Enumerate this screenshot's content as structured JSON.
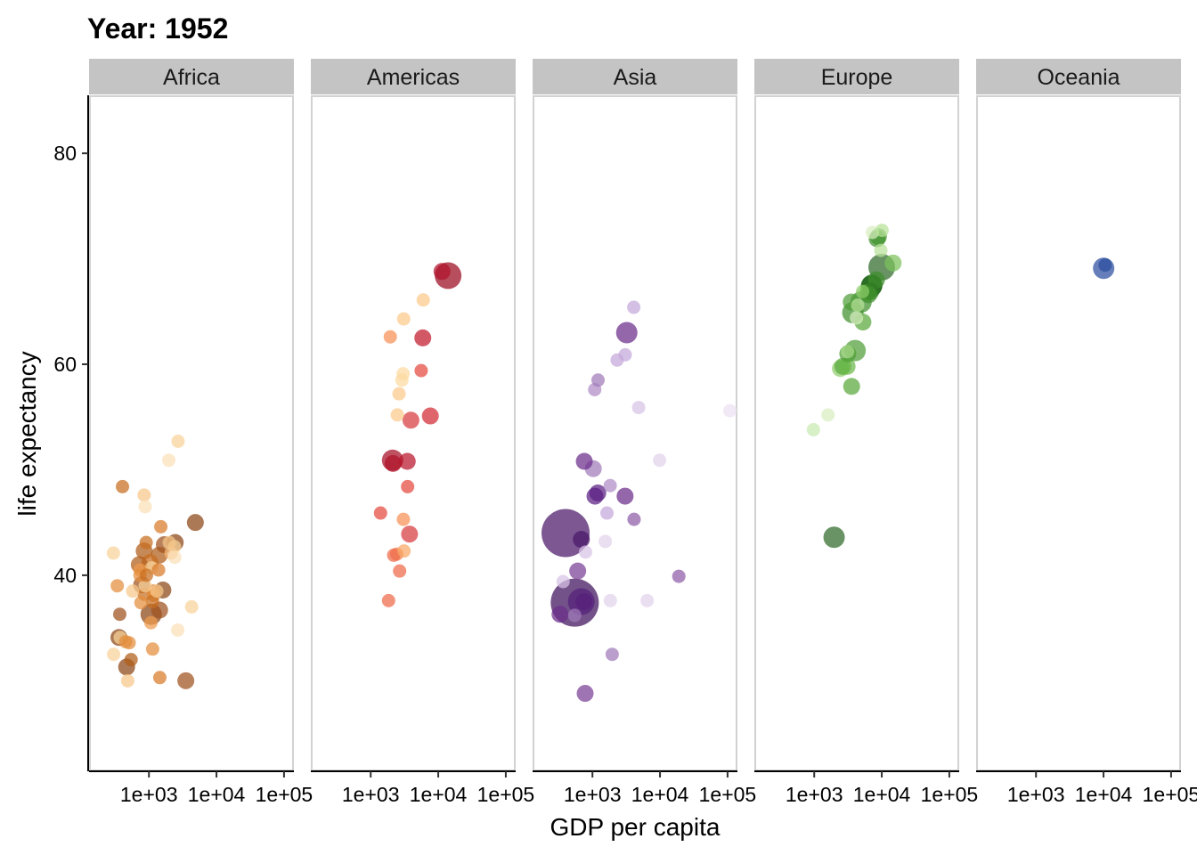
{
  "title": "Year: 1952",
  "chart_data": {
    "type": "scatter",
    "title": "Year: 1952",
    "xlabel": "GDP per capita",
    "ylabel": "life expectancy",
    "x_scale": "log10",
    "xlim": [
      130,
      140000
    ],
    "ylim": [
      21.5,
      85.5
    ],
    "x_ticks": [
      1000,
      10000,
      100000
    ],
    "x_tick_labels": [
      "1e+03",
      "1e+04",
      "1e+05"
    ],
    "y_ticks": [
      40,
      60,
      80
    ],
    "y_tick_labels": [
      "40",
      "60",
      "80"
    ],
    "facets": [
      {
        "name": "Africa",
        "points": [
          {
            "x": 2450,
            "y": 43.1,
            "size": 2,
            "color": "#8b4513"
          },
          {
            "x": 3520,
            "y": 30.0,
            "size": 2,
            "color": "#a0521d"
          },
          {
            "x": 850,
            "y": 38.2,
            "size": 1,
            "color": "#c86d1e"
          },
          {
            "x": 850,
            "y": 47.6,
            "size": 1,
            "color": "#f6c78a"
          },
          {
            "x": 545,
            "y": 32.0,
            "size": 1,
            "color": "#b05c17"
          },
          {
            "x": 340,
            "y": 39.0,
            "size": 1,
            "color": "#e38d3b"
          },
          {
            "x": 1170,
            "y": 38.5,
            "size": 1,
            "color": "#d97a2a"
          },
          {
            "x": 1070,
            "y": 35.5,
            "size": 1,
            "color": "#ee9a4c"
          },
          {
            "x": 1180,
            "y": 38.1,
            "size": 1,
            "color": "#e38d3b"
          },
          {
            "x": 1100,
            "y": 40.7,
            "size": 1,
            "color": "#f8d29a"
          },
          {
            "x": 780,
            "y": 39.1,
            "size": 2,
            "color": "#a0521d"
          },
          {
            "x": 2130,
            "y": 42.1,
            "size": 1,
            "color": "#f4b87a"
          },
          {
            "x": 1390,
            "y": 40.5,
            "size": 1,
            "color": "#d97a2a"
          },
          {
            "x": 2670,
            "y": 34.8,
            "size": 1,
            "color": "#fbe0b8"
          },
          {
            "x": 1420,
            "y": 41.9,
            "size": 2,
            "color": "#b05c17"
          },
          {
            "x": 375,
            "y": 34.1,
            "size": 1,
            "color": "#f8d29a"
          },
          {
            "x": 360,
            "y": 34.1,
            "size": 2,
            "color": "#8b4513"
          },
          {
            "x": 4290,
            "y": 37.0,
            "size": 1,
            "color": "#f8d29a"
          },
          {
            "x": 485,
            "y": 30.0,
            "size": 1,
            "color": "#f6c78a"
          },
          {
            "x": 911,
            "y": 43.1,
            "size": 1,
            "color": "#c86d1e"
          },
          {
            "x": 510,
            "y": 33.6,
            "size": 1,
            "color": "#e38d3b"
          },
          {
            "x": 300,
            "y": 32.5,
            "size": 1,
            "color": "#f8d29a"
          },
          {
            "x": 850,
            "y": 42.3,
            "size": 2,
            "color": "#b05c17"
          },
          {
            "x": 298,
            "y": 42.1,
            "size": 1,
            "color": "#f8d29a"
          },
          {
            "x": 575,
            "y": 38.5,
            "size": 1,
            "color": "#f6c78a"
          },
          {
            "x": 2390,
            "y": 42.7,
            "size": 1,
            "color": "#f8d29a"
          },
          {
            "x": 1440,
            "y": 36.7,
            "size": 2,
            "color": "#a0521d"
          },
          {
            "x": 370,
            "y": 36.3,
            "size": 1,
            "color": "#a0521d"
          },
          {
            "x": 1130,
            "y": 37.5,
            "size": 1,
            "color": "#c86d1e"
          },
          {
            "x": 452,
            "y": 33.7,
            "size": 1,
            "color": "#e38d3b"
          },
          {
            "x": 740,
            "y": 40.5,
            "size": 1,
            "color": "#ee9a4c"
          },
          {
            "x": 1970,
            "y": 50.9,
            "size": 1,
            "color": "#fbe0b8"
          },
          {
            "x": 1690,
            "y": 42.9,
            "size": 2,
            "color": "#a0521d"
          },
          {
            "x": 468,
            "y": 31.3,
            "size": 2,
            "color": "#8b4513"
          },
          {
            "x": 2420,
            "y": 41.7,
            "size": 1,
            "color": "#fbe0b8"
          },
          {
            "x": 762,
            "y": 37.4,
            "size": 1,
            "color": "#e38d3b"
          },
          {
            "x": 1080,
            "y": 36.3,
            "size": 3,
            "color": "#8b4513"
          },
          {
            "x": 880,
            "y": 39.0,
            "size": 1,
            "color": "#f8d29a"
          },
          {
            "x": 1450,
            "y": 30.3,
            "size": 1,
            "color": "#d97a2a"
          },
          {
            "x": 880,
            "y": 46.5,
            "size": 1,
            "color": "#fbe0b8"
          },
          {
            "x": 1135,
            "y": 33.0,
            "size": 1,
            "color": "#e38d3b"
          },
          {
            "x": 4870,
            "y": 45.0,
            "size": 2,
            "color": "#8b4513"
          },
          {
            "x": 1610,
            "y": 38.6,
            "size": 2,
            "color": "#8b4513"
          },
          {
            "x": 1040,
            "y": 41.2,
            "size": 2,
            "color": "#c86d1e"
          },
          {
            "x": 1310,
            "y": 38.5,
            "size": 1,
            "color": "#f6c78a"
          },
          {
            "x": 2700,
            "y": 52.7,
            "size": 1,
            "color": "#f8d29a"
          },
          {
            "x": 738,
            "y": 40.0,
            "size": 1,
            "color": "#e38d3b"
          },
          {
            "x": 2000,
            "y": 43.1,
            "size": 1,
            "color": "#f6c78a"
          },
          {
            "x": 406,
            "y": 48.4,
            "size": 1,
            "color": "#c86d1e"
          },
          {
            "x": 920,
            "y": 40.0,
            "size": 1,
            "color": "#c86d1e"
          },
          {
            "x": 1500,
            "y": 44.6,
            "size": 1,
            "color": "#d97a2a"
          },
          {
            "x": 720,
            "y": 41.0,
            "size": 2,
            "color": "#b05c17"
          }
        ]
      },
      {
        "name": "Americas",
        "points": [
          {
            "x": 5910,
            "y": 62.5,
            "size": 2,
            "color": "#c0182b"
          },
          {
            "x": 2680,
            "y": 40.4,
            "size": 1,
            "color": "#ef6a4a"
          },
          {
            "x": 2110,
            "y": 50.9,
            "size": 3,
            "color": "#a50f26"
          },
          {
            "x": 11370,
            "y": 68.8,
            "size": 2,
            "color": "#b0122a"
          },
          {
            "x": 3940,
            "y": 54.7,
            "size": 2,
            "color": "#d73a3e"
          },
          {
            "x": 2140,
            "y": 50.6,
            "size": 2,
            "color": "#b0122a"
          },
          {
            "x": 2630,
            "y": 57.2,
            "size": 1,
            "color": "#fcc98a"
          },
          {
            "x": 5590,
            "y": 59.4,
            "size": 1,
            "color": "#e4483e"
          },
          {
            "x": 1400,
            "y": 45.9,
            "size": 1,
            "color": "#e4483e"
          },
          {
            "x": 3520,
            "y": 48.4,
            "size": 1,
            "color": "#e4483e"
          },
          {
            "x": 3050,
            "y": 45.3,
            "size": 1,
            "color": "#f88f55"
          },
          {
            "x": 2430,
            "y": 42.0,
            "size": 1,
            "color": "#f47a4a"
          },
          {
            "x": 1840,
            "y": 37.6,
            "size": 1,
            "color": "#ef6a4a"
          },
          {
            "x": 2190,
            "y": 41.9,
            "size": 1,
            "color": "#ef6a4a"
          },
          {
            "x": 2900,
            "y": 58.5,
            "size": 1,
            "color": "#fcd9a0"
          },
          {
            "x": 3480,
            "y": 50.8,
            "size": 2,
            "color": "#b8152b"
          },
          {
            "x": 3110,
            "y": 42.3,
            "size": 1,
            "color": "#f8a865"
          },
          {
            "x": 2480,
            "y": 55.2,
            "size": 1,
            "color": "#fcc98a"
          },
          {
            "x": 1950,
            "y": 62.6,
            "size": 1,
            "color": "#f88f55"
          },
          {
            "x": 3760,
            "y": 43.9,
            "size": 2,
            "color": "#d73a3e"
          },
          {
            "x": 3080,
            "y": 64.3,
            "size": 1,
            "color": "#fcc98a"
          },
          {
            "x": 3020,
            "y": 59.1,
            "size": 1,
            "color": "#fcd9a0"
          },
          {
            "x": 6000,
            "y": 66.1,
            "size": 1,
            "color": "#fcc98a"
          },
          {
            "x": 13990,
            "y": 68.4,
            "size": 4,
            "color": "#9a0a20"
          },
          {
            "x": 7640,
            "y": 55.1,
            "size": 2,
            "color": "#d32a35"
          }
        ]
      },
      {
        "name": "Asia",
        "points": [
          {
            "x": 780,
            "y": 28.8,
            "size": 2,
            "color": "#7a3f96"
          },
          {
            "x": 9870,
            "y": 50.9,
            "size": 1,
            "color": "#e2d2ec"
          },
          {
            "x": 684,
            "y": 37.5,
            "size": 4,
            "color": "#54207a"
          },
          {
            "x": 368,
            "y": 39.4,
            "size": 1,
            "color": "#d8c3e6"
          },
          {
            "x": 400,
            "y": 44.0,
            "size": 6,
            "color": "#4a1668"
          },
          {
            "x": 3050,
            "y": 60.9,
            "size": 1,
            "color": "#c4a8da"
          },
          {
            "x": 547,
            "y": 37.4,
            "size": 6,
            "color": "#3d0f5c"
          },
          {
            "x": 750,
            "y": 37.5,
            "size": 2,
            "color": "#54207a"
          },
          {
            "x": 3040,
            "y": 47.5,
            "size": 2,
            "color": "#6b2c8a"
          },
          {
            "x": 4130,
            "y": 45.3,
            "size": 1,
            "color": "#8e5ca8"
          },
          {
            "x": 4090,
            "y": 65.4,
            "size": 1,
            "color": "#c4a8da"
          },
          {
            "x": 3220,
            "y": 63.0,
            "size": 3,
            "color": "#6b2c8a"
          },
          {
            "x": 1550,
            "y": 43.2,
            "size": 1,
            "color": "#e2d2ec"
          },
          {
            "x": 1090,
            "y": 47.5,
            "size": 2,
            "color": "#5a1f82"
          },
          {
            "x": 1030,
            "y": 50.1,
            "size": 2,
            "color": "#a07ab8"
          },
          {
            "x": 108380,
            "y": 55.6,
            "size": 1,
            "color": "#ece0f3"
          },
          {
            "x": 4830,
            "y": 55.9,
            "size": 1,
            "color": "#d8c3e6"
          },
          {
            "x": 1830,
            "y": 48.5,
            "size": 1,
            "color": "#b08ac6"
          },
          {
            "x": 790,
            "y": 42.2,
            "size": 1,
            "color": "#d8c3e6"
          },
          {
            "x": 331,
            "y": 36.3,
            "size": 2,
            "color": "#6b2c8a"
          },
          {
            "x": 546,
            "y": 36.2,
            "size": 1,
            "color": "#a07ab8"
          },
          {
            "x": 6460,
            "y": 37.6,
            "size": 1,
            "color": "#e2d2ec"
          },
          {
            "x": 685,
            "y": 43.4,
            "size": 2,
            "color": "#4a1668"
          },
          {
            "x": 1200,
            "y": 47.8,
            "size": 2,
            "color": "#5a1f82"
          },
          {
            "x": 19000,
            "y": 39.9,
            "size": 1,
            "color": "#8e5ca8"
          },
          {
            "x": 2320,
            "y": 60.4,
            "size": 1,
            "color": "#c4a8da"
          },
          {
            "x": 1080,
            "y": 57.6,
            "size": 1,
            "color": "#b08ac6"
          },
          {
            "x": 1640,
            "y": 45.9,
            "size": 1,
            "color": "#c4a8da"
          },
          {
            "x": 1210,
            "y": 58.5,
            "size": 1,
            "color": "#a07ab8"
          },
          {
            "x": 757,
            "y": 50.8,
            "size": 2,
            "color": "#6b2c8a"
          },
          {
            "x": 1840,
            "y": 37.6,
            "size": 1,
            "color": "#e2d2ec"
          },
          {
            "x": 605,
            "y": 40.4,
            "size": 2,
            "color": "#7a3f96"
          },
          {
            "x": 1960,
            "y": 32.5,
            "size": 1,
            "color": "#a07ab8"
          }
        ]
      },
      {
        "name": "Europe",
        "points": [
          {
            "x": 1600,
            "y": 55.2,
            "size": 1,
            "color": "#d8efc0"
          },
          {
            "x": 6140,
            "y": 66.8,
            "size": 2,
            "color": "#5aa83c"
          },
          {
            "x": 8340,
            "y": 68.0,
            "size": 2,
            "color": "#3f8f2c"
          },
          {
            "x": 974,
            "y": 53.8,
            "size": 1,
            "color": "#c8eab0"
          },
          {
            "x": 2440,
            "y": 59.6,
            "size": 2,
            "color": "#8ccc6a"
          },
          {
            "x": 3120,
            "y": 61.2,
            "size": 1,
            "color": "#a7da8a"
          },
          {
            "x": 6880,
            "y": 66.9,
            "size": 2,
            "color": "#2f7a22"
          },
          {
            "x": 9690,
            "y": 70.8,
            "size": 1,
            "color": "#b8e29a"
          },
          {
            "x": 6420,
            "y": 66.6,
            "size": 2,
            "color": "#3f8f2c"
          },
          {
            "x": 7030,
            "y": 67.4,
            "size": 3,
            "color": "#1f6a15"
          },
          {
            "x": 7140,
            "y": 67.5,
            "size": 3,
            "color": "#186012"
          },
          {
            "x": 3530,
            "y": 65.9,
            "size": 2,
            "color": "#4f9e38"
          },
          {
            "x": 5260,
            "y": 64.0,
            "size": 2,
            "color": "#5aa83c"
          },
          {
            "x": 7270,
            "y": 72.5,
            "size": 1,
            "color": "#d8efc0"
          },
          {
            "x": 5210,
            "y": 66.9,
            "size": 1,
            "color": "#8ccc6a"
          },
          {
            "x": 4930,
            "y": 65.9,
            "size": 3,
            "color": "#3f8f2c"
          },
          {
            "x": 2650,
            "y": 59.8,
            "size": 2,
            "color": "#5aa83c"
          },
          {
            "x": 8940,
            "y": 72.1,
            "size": 2,
            "color": "#4f9e38"
          },
          {
            "x": 10100,
            "y": 72.7,
            "size": 1,
            "color": "#b8e29a"
          },
          {
            "x": 4030,
            "y": 61.3,
            "size": 3,
            "color": "#4f9e38"
          },
          {
            "x": 3070,
            "y": 59.8,
            "size": 2,
            "color": "#6ab84a"
          },
          {
            "x": 3140,
            "y": 61.0,
            "size": 2,
            "color": "#4f9e38"
          },
          {
            "x": 3580,
            "y": 57.9,
            "size": 2,
            "color": "#5aa83c"
          },
          {
            "x": 4220,
            "y": 64.4,
            "size": 1,
            "color": "#d8efc0"
          },
          {
            "x": 4400,
            "y": 65.6,
            "size": 1,
            "color": "#b8e29a"
          },
          {
            "x": 3730,
            "y": 64.9,
            "size": 3,
            "color": "#3f8f2c"
          },
          {
            "x": 8530,
            "y": 71.9,
            "size": 2,
            "color": "#3f8f2c"
          },
          {
            "x": 14730,
            "y": 69.6,
            "size": 2,
            "color": "#7cc25a"
          },
          {
            "x": 1970,
            "y": 43.6,
            "size": 3,
            "color": "#2f6a28"
          },
          {
            "x": 9980,
            "y": 69.2,
            "size": 4,
            "color": "#2f6a28"
          }
        ]
      },
      {
        "name": "Oceania",
        "points": [
          {
            "x": 10040,
            "y": 69.1,
            "size": 3,
            "color": "#2b4ea0"
          },
          {
            "x": 10560,
            "y": 69.4,
            "size": 1,
            "color": "#2b4ea0"
          }
        ]
      }
    ]
  }
}
